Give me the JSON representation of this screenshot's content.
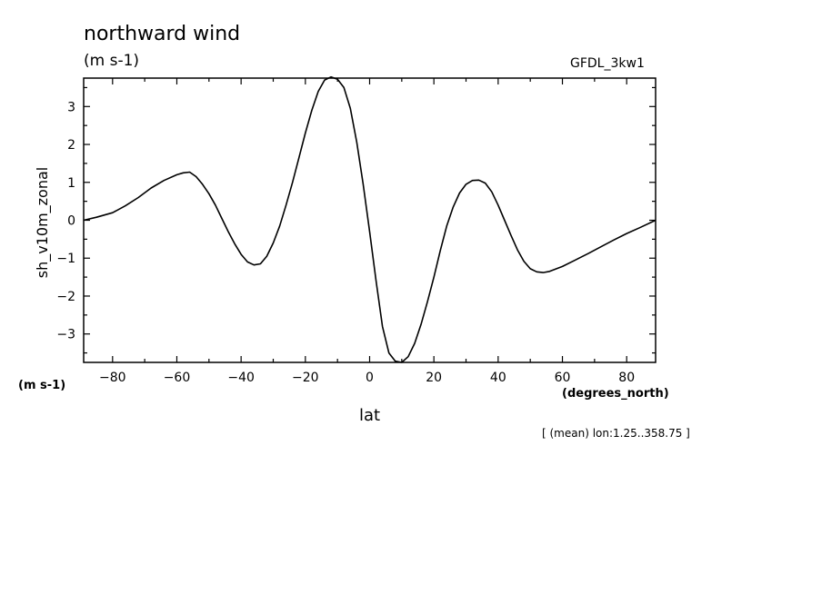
{
  "chart_data": {
    "type": "line",
    "title": "northward wind",
    "units": "(m s-1)",
    "dataset": "GFDL_3kw1",
    "xlabel": "lat",
    "xunits": "(degrees_north)",
    "ylabel": "sh_v10m_zonal",
    "yunits": "(m s-1)",
    "footnote": "[ (mean) lon:1.25..358.75 ]",
    "xlim": [
      -89,
      89
    ],
    "ylim": [
      -3.75,
      3.75
    ],
    "xticks": [
      -80,
      -60,
      -40,
      -20,
      0,
      20,
      40,
      60,
      80
    ],
    "yticks": [
      -3,
      -2,
      -1,
      0,
      1,
      2,
      3
    ],
    "grid": false,
    "series": [
      {
        "x": [
          -89,
          -85,
          -80,
          -76,
          -72,
          -68,
          -64,
          -60,
          -58,
          -56,
          -54,
          -52,
          -50,
          -48,
          -46,
          -44,
          -42,
          -40,
          -38,
          -36,
          -34,
          -32,
          -30,
          -28,
          -26,
          -24,
          -22,
          -20,
          -18,
          -16,
          -14,
          -12,
          -10,
          -8,
          -6,
          -4,
          -2,
          0,
          2,
          4,
          6,
          8,
          10,
          12,
          14,
          16,
          18,
          20,
          22,
          24,
          26,
          28,
          30,
          32,
          34,
          36,
          38,
          40,
          42,
          44,
          46,
          48,
          50,
          52,
          54,
          56,
          60,
          64,
          68,
          72,
          76,
          80,
          84,
          89
        ],
        "y": [
          0.0,
          0.08,
          0.2,
          0.38,
          0.6,
          0.85,
          1.05,
          1.2,
          1.25,
          1.27,
          1.15,
          0.95,
          0.7,
          0.4,
          0.05,
          -0.3,
          -0.62,
          -0.9,
          -1.1,
          -1.18,
          -1.15,
          -0.95,
          -0.6,
          -0.15,
          0.4,
          1.0,
          1.65,
          2.3,
          2.9,
          3.4,
          3.7,
          3.78,
          3.72,
          3.5,
          2.95,
          2.05,
          0.95,
          -0.3,
          -1.6,
          -2.8,
          -3.5,
          -3.72,
          -3.75,
          -3.6,
          -3.25,
          -2.75,
          -2.15,
          -1.5,
          -0.8,
          -0.15,
          0.35,
          0.72,
          0.95,
          1.05,
          1.06,
          0.98,
          0.75,
          0.4,
          0.0,
          -0.4,
          -0.78,
          -1.08,
          -1.28,
          -1.36,
          -1.38,
          -1.35,
          -1.22,
          -1.05,
          -0.88,
          -0.7,
          -0.52,
          -0.35,
          -0.2,
          0.0
        ]
      }
    ]
  }
}
